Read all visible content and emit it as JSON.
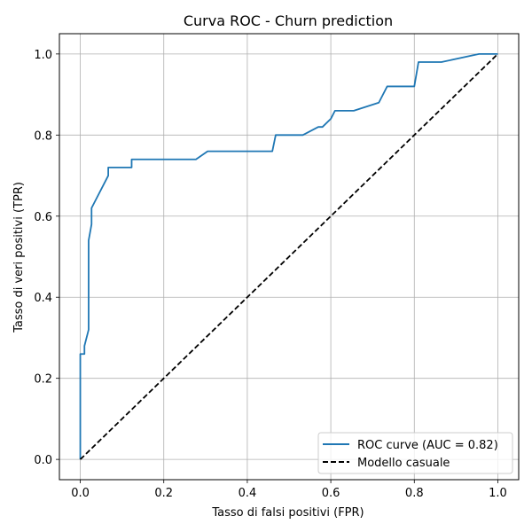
{
  "chart_data": {
    "type": "line",
    "title": "Curva ROC - Churn prediction",
    "xlabel": "Tasso di falsi positivi (FPR)",
    "ylabel": "Tasso di veri positivi (TPR)",
    "xlim": [
      -0.05,
      1.05
    ],
    "ylim": [
      -0.05,
      1.05
    ],
    "xticks": [
      0.0,
      0.2,
      0.4,
      0.6,
      0.8,
      1.0
    ],
    "yticks": [
      0.0,
      0.2,
      0.4,
      0.6,
      0.8,
      1.0
    ],
    "xtick_labels": [
      "0.0",
      "0.2",
      "0.4",
      "0.6",
      "0.8",
      "1.0"
    ],
    "ytick_labels": [
      "0.0",
      "0.2",
      "0.4",
      "0.6",
      "0.8",
      "1.0"
    ],
    "grid": true,
    "legend_position": "lower-right",
    "series": [
      {
        "name": "ROC curve (AUC = 0.82)",
        "color": "#1f77b4",
        "style": "solid",
        "x": [
          0.0,
          0.0,
          0.0,
          0.01,
          0.01,
          0.02,
          0.02,
          0.02,
          0.027,
          0.027,
          0.067,
          0.067,
          0.123,
          0.123,
          0.277,
          0.305,
          0.46,
          0.468,
          0.533,
          0.57,
          0.58,
          0.6,
          0.61,
          0.655,
          0.715,
          0.735,
          0.8,
          0.81,
          0.865,
          0.955,
          1.0
        ],
        "y": [
          0.0,
          0.26,
          0.26,
          0.26,
          0.28,
          0.32,
          0.54,
          0.54,
          0.58,
          0.62,
          0.7,
          0.72,
          0.72,
          0.74,
          0.74,
          0.76,
          0.76,
          0.8,
          0.8,
          0.82,
          0.82,
          0.84,
          0.86,
          0.86,
          0.88,
          0.92,
          0.92,
          0.98,
          0.98,
          1.0,
          1.0
        ]
      },
      {
        "name": "Modello casuale",
        "color": "#000000",
        "style": "dashed",
        "x": [
          0.0,
          1.0
        ],
        "y": [
          0.0,
          1.0
        ]
      }
    ]
  }
}
